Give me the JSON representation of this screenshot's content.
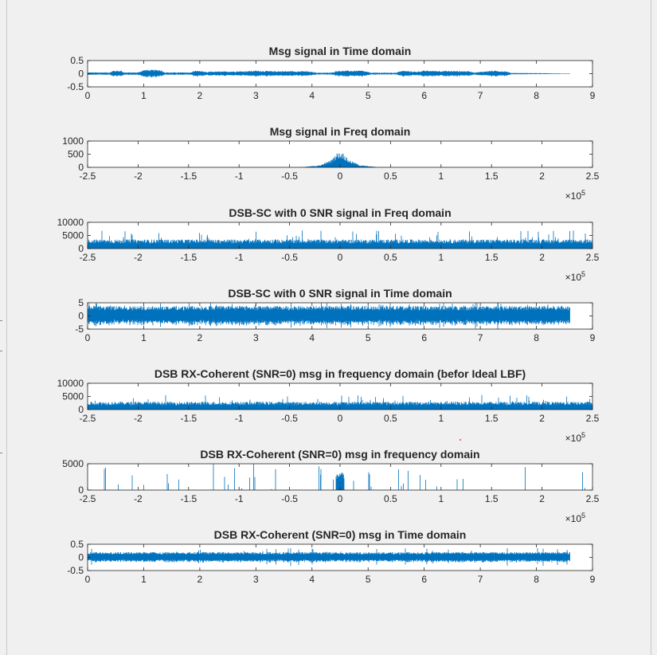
{
  "figure": {
    "background": "#f0f0f0",
    "axes_background": "#ffffff",
    "line_color": "#0072bd",
    "accent_dot_color": "#ff0000"
  },
  "chart_data": [
    {
      "type": "line",
      "title": "Msg signal in Time domain",
      "xlim": [
        0,
        9
      ],
      "ylim": [
        -0.5,
        0.5
      ],
      "xticks": [
        0,
        1,
        2,
        3,
        4,
        5,
        6,
        7,
        8,
        9
      ],
      "xtick_labels": [
        "0",
        "1",
        "2",
        "3",
        "4",
        "5",
        "6",
        "7",
        "8",
        "9"
      ],
      "yticks": [
        -0.5,
        0,
        0.5
      ],
      "ytick_labels": [
        "-0.5",
        "0",
        "0.5"
      ],
      "x_exponent": "",
      "grid": false,
      "series": [
        {
          "signal_extent": [
            0,
            8.6
          ],
          "baseline_amplitude": 0.01,
          "envelope": [
            [
              0.4,
              0.05
            ],
            [
              0.45,
              0.12
            ],
            [
              0.6,
              0.12
            ],
            [
              0.65,
              0.05
            ],
            [
              0.9,
              0.05
            ],
            [
              1.0,
              0.15
            ],
            [
              1.3,
              0.15
            ],
            [
              1.38,
              0.05
            ],
            [
              1.85,
              0.05
            ],
            [
              1.9,
              0.12
            ],
            [
              2.05,
              0.1
            ],
            [
              2.15,
              0.04
            ],
            [
              2.15,
              0.08
            ],
            [
              2.8,
              0.1
            ],
            [
              3.0,
              0.12
            ],
            [
              3.3,
              0.1
            ],
            [
              3.5,
              0.1
            ],
            [
              3.9,
              0.1
            ],
            [
              4.1,
              0.04
            ],
            [
              4.35,
              0.04
            ],
            [
              4.45,
              0.12
            ],
            [
              4.7,
              0.12
            ],
            [
              4.9,
              0.12
            ],
            [
              5.05,
              0.04
            ],
            [
              5.5,
              0.04
            ],
            [
              5.6,
              0.12
            ],
            [
              5.85,
              0.08
            ],
            [
              6.0,
              0.12
            ],
            [
              6.8,
              0.1
            ],
            [
              6.9,
              0.05
            ],
            [
              7.2,
              0.12
            ],
            [
              7.45,
              0.1
            ],
            [
              7.55,
              0.03
            ],
            [
              8.6,
              0.01
            ]
          ]
        }
      ]
    },
    {
      "type": "line",
      "title": "Msg signal in Freq domain",
      "xlim": [
        -250000,
        250000
      ],
      "ylim": [
        0,
        1000
      ],
      "xticks": [
        -250000,
        -200000,
        -150000,
        -100000,
        -50000,
        0,
        50000,
        100000,
        150000,
        200000,
        250000
      ],
      "xtick_labels": [
        "-2.5",
        "-2",
        "-1.5",
        "-1",
        "-0.5",
        "0",
        "0.5",
        "1",
        "1.5",
        "2",
        "2.5"
      ],
      "yticks": [
        0,
        500,
        1000
      ],
      "ytick_labels": [
        "0",
        "500",
        "1000"
      ],
      "x_exponent": "×10",
      "x_exponent_power": "5",
      "grid": false,
      "series": [
        {
          "signal_extent": [
            -250000,
            250000
          ],
          "baseline_amplitude": 4,
          "envelope": [
            [
              -40000,
              0
            ],
            [
              -20000,
              80
            ],
            [
              -8000,
              300
            ],
            [
              -3000,
              550
            ],
            [
              3000,
              550
            ],
            [
              8000,
              300
            ],
            [
              20000,
              80
            ],
            [
              40000,
              0
            ]
          ]
        }
      ]
    },
    {
      "type": "line",
      "title": "DSB-SC with 0 SNR signal in Freq domain",
      "xlim": [
        -250000,
        250000
      ],
      "ylim": [
        0,
        10000
      ],
      "xticks": [
        -250000,
        -200000,
        -150000,
        -100000,
        -50000,
        0,
        50000,
        100000,
        150000,
        200000,
        250000
      ],
      "xtick_labels": [
        "-2.5",
        "-2",
        "-1.5",
        "-1",
        "-0.5",
        "0",
        "0.5",
        "1",
        "1.5",
        "2",
        "2.5"
      ],
      "yticks": [
        0,
        5000,
        10000
      ],
      "ytick_labels": [
        "0",
        "5000",
        "10000"
      ],
      "x_exponent": "×10",
      "x_exponent_power": "5",
      "grid": false,
      "series": [
        {
          "signal_extent": [
            -250000,
            250000
          ],
          "baseline_amplitude": 3500,
          "noise_peak": 7000
        }
      ]
    },
    {
      "type": "line",
      "title": "DSB-SC with 0 SNR signal in Time domain",
      "xlim": [
        0,
        9
      ],
      "ylim": [
        -5,
        5
      ],
      "xticks": [
        0,
        1,
        2,
        3,
        4,
        5,
        6,
        7,
        8,
        9
      ],
      "xtick_labels": [
        "0",
        "1",
        "2",
        "3",
        "4",
        "5",
        "6",
        "7",
        "8",
        "9"
      ],
      "yticks": [
        -5,
        0,
        5
      ],
      "ytick_labels": [
        "-5",
        "0",
        "5"
      ],
      "x_exponent": "",
      "grid": false,
      "series": [
        {
          "signal_extent": [
            0,
            8.6
          ],
          "baseline_amplitude": 3.8,
          "noise_peak": 5
        }
      ]
    },
    {
      "type": "line",
      "title": "DSB RX-Coherent (SNR=0) msg in frequency domain (befor Ideal LBF)",
      "xlim": [
        -250000,
        250000
      ],
      "ylim": [
        0,
        10000
      ],
      "xticks": [
        -250000,
        -200000,
        -150000,
        -100000,
        -50000,
        0,
        50000,
        100000,
        150000,
        200000,
        250000
      ],
      "xtick_labels": [
        "-2.5",
        "-2",
        "-1.5",
        "-1",
        "-0.5",
        "0",
        "0.5",
        "1",
        "1.5",
        "2",
        "2.5"
      ],
      "yticks": [
        0,
        5000,
        10000
      ],
      "ytick_labels": [
        "0",
        "5000",
        "10000"
      ],
      "x_exponent": "×10",
      "x_exponent_power": "5",
      "grid": false,
      "series": [
        {
          "signal_extent": [
            -250000,
            250000
          ],
          "baseline_amplitude": 3000,
          "noise_peak": 5500
        }
      ]
    },
    {
      "type": "line",
      "title": "DSB RX-Coherent (SNR=0) msg in frequency domain",
      "xlim": [
        -250000,
        250000
      ],
      "ylim": [
        0,
        5000
      ],
      "xticks": [
        -250000,
        -200000,
        -150000,
        -100000,
        -50000,
        0,
        50000,
        100000,
        150000,
        200000,
        250000
      ],
      "xtick_labels": [
        "-2.5",
        "-2",
        "-1.5",
        "-1",
        "-0.5",
        "0",
        "0.5",
        "1",
        "1.5",
        "2",
        "2.5"
      ],
      "yticks": [
        0,
        5000
      ],
      "ytick_labels": [
        "0",
        "5000"
      ],
      "x_exponent": "×10",
      "x_exponent_power": "5",
      "grid": false,
      "series": [
        {
          "signal_extent": [
            -250000,
            250000
          ],
          "baseline_amplitude": 8,
          "passband": [
            -4000,
            4000
          ],
          "passband_level": 3500,
          "noise_peak": 5000
        }
      ]
    },
    {
      "type": "line",
      "title": "DSB RX-Coherent (SNR=0) msg in Time domain",
      "xlim": [
        0,
        9
      ],
      "ylim": [
        -0.5,
        0.5
      ],
      "xticks": [
        0,
        1,
        2,
        3,
        4,
        5,
        6,
        7,
        8,
        9
      ],
      "xtick_labels": [
        "0",
        "1",
        "2",
        "3",
        "4",
        "5",
        "6",
        "7",
        "8",
        "9"
      ],
      "yticks": [
        -0.5,
        0,
        0.5
      ],
      "ytick_labels": [
        "-0.5",
        "0",
        "0.5"
      ],
      "x_exponent": "",
      "grid": false,
      "series": [
        {
          "signal_extent": [
            0,
            8.6
          ],
          "baseline_amplitude": 0.2,
          "noise_peak": 0.35
        }
      ]
    }
  ]
}
